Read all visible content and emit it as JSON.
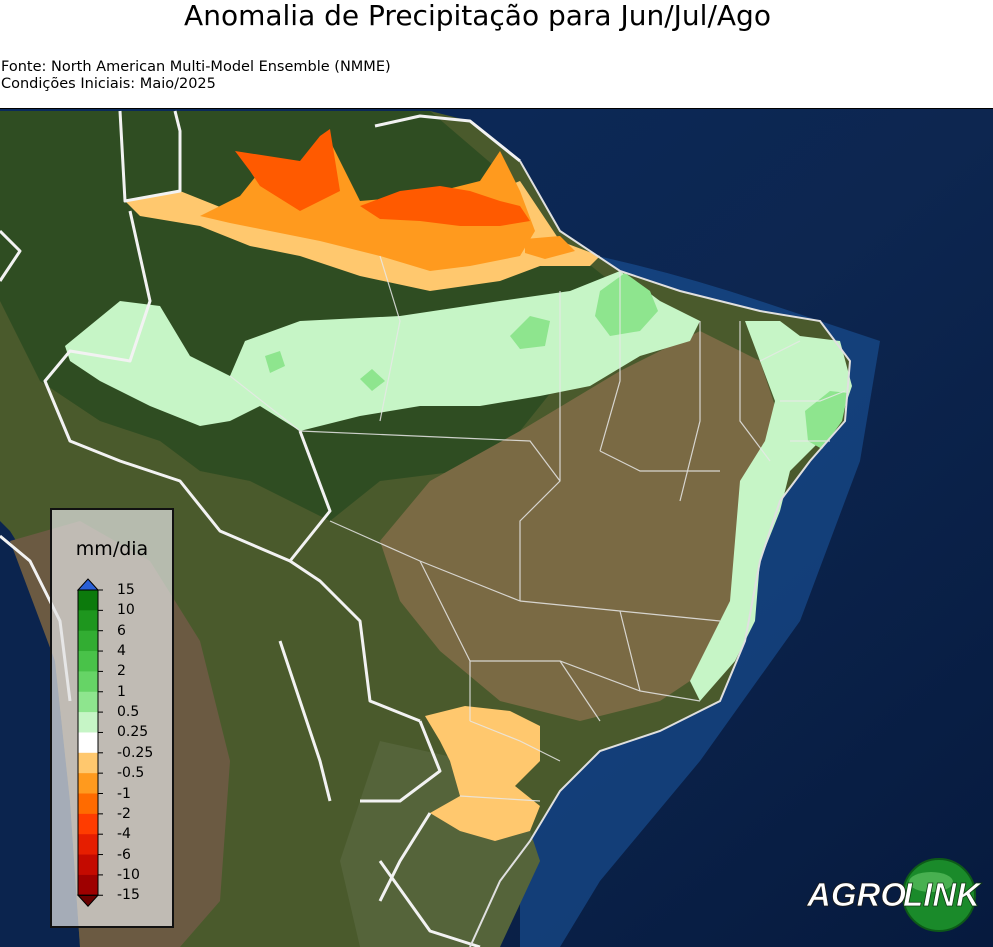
{
  "title": "Anomalia de Precipitação para Jun/Jul/Ago",
  "source": "Fonte: North American Multi-Model Ensemble (NMME)",
  "initial_conditions": "Condições Iniciais: Maio/2025",
  "legend": {
    "unit": "mm/dia",
    "ticks": [
      "15",
      "10",
      "6",
      "4",
      "2",
      "1",
      "0.5",
      "0.25",
      "-0.25",
      "-0.5",
      "-1",
      "-2",
      "-4",
      "-6",
      "-10",
      "-15"
    ],
    "colors": [
      "#0c7a0c",
      "#1e961e",
      "#32ad32",
      "#49c249",
      "#66d466",
      "#8ee58e",
      "#c6f5c6",
      "#ffffff",
      "#ffc86e",
      "#ff9a1e",
      "#ff6b00",
      "#ff3c00",
      "#e61e00",
      "#c40a00",
      "#9e0000"
    ],
    "top_arrow_color": "#2a5fd6",
    "bottom_arrow_color": "#6a0000"
  },
  "logo": {
    "word1": "AGRO",
    "word2": "LINK"
  }
}
